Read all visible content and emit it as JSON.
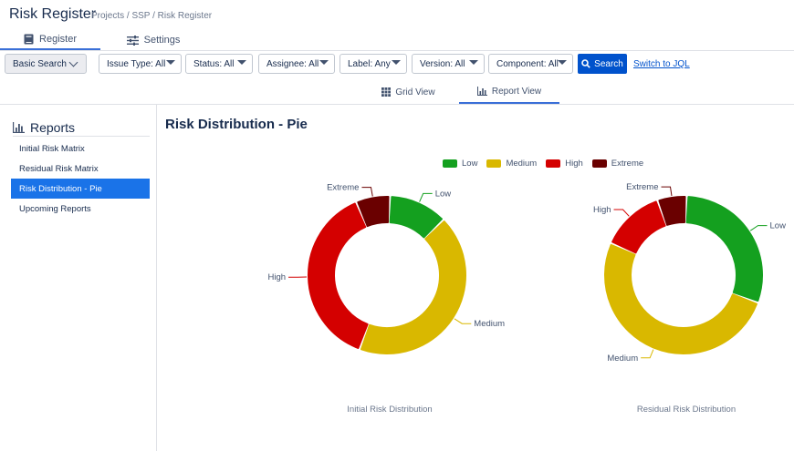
{
  "header": {
    "title": "Risk Register",
    "breadcrumb": "Projects / SSP / Risk Register",
    "tabs": [
      {
        "label": "Register",
        "icon": "book-icon",
        "active": true
      },
      {
        "label": "Settings",
        "icon": "sliders-icon",
        "active": false
      }
    ]
  },
  "toolbar": {
    "basic_search": "Basic Search",
    "filters": [
      {
        "label": "Issue Type: All"
      },
      {
        "label": "Status: All"
      },
      {
        "label": "Assignee: All"
      },
      {
        "label": "Label: Any"
      },
      {
        "label": "Version: All"
      },
      {
        "label": "Component: All"
      }
    ],
    "search_label": "Search",
    "jql_label": "Switch to JQL",
    "accent": "#0052cc"
  },
  "views": {
    "grid_label": "Grid View",
    "report_label": "Report View",
    "active": "report"
  },
  "sidebar": {
    "heading": "Reports",
    "items": [
      {
        "label": "Initial Risk Matrix",
        "active": false
      },
      {
        "label": "Residual Risk Matrix",
        "active": false
      },
      {
        "label": "Risk Distribution - Pie",
        "active": true
      },
      {
        "label": "Upcoming Reports",
        "active": false
      }
    ]
  },
  "main": {
    "title": "Risk Distribution - Pie"
  },
  "chart_data": [
    {
      "type": "pie",
      "title": "Initial Risk Distribution",
      "donut": true,
      "legend_position": "top",
      "categories": [
        "Low",
        "Medium",
        "High",
        "Extreme"
      ],
      "colors": [
        "#14a01f",
        "#d9b800",
        "#d40000",
        "#6a0000"
      ],
      "values": [
        12,
        43,
        38,
        7
      ]
    },
    {
      "type": "pie",
      "title": "Residual Risk Distribution",
      "donut": true,
      "legend_position": "top",
      "categories": [
        "Low",
        "Medium",
        "High",
        "Extreme"
      ],
      "colors": [
        "#14a01f",
        "#d9b800",
        "#d40000",
        "#6a0000"
      ],
      "values": [
        30,
        51,
        13,
        6
      ]
    }
  ]
}
